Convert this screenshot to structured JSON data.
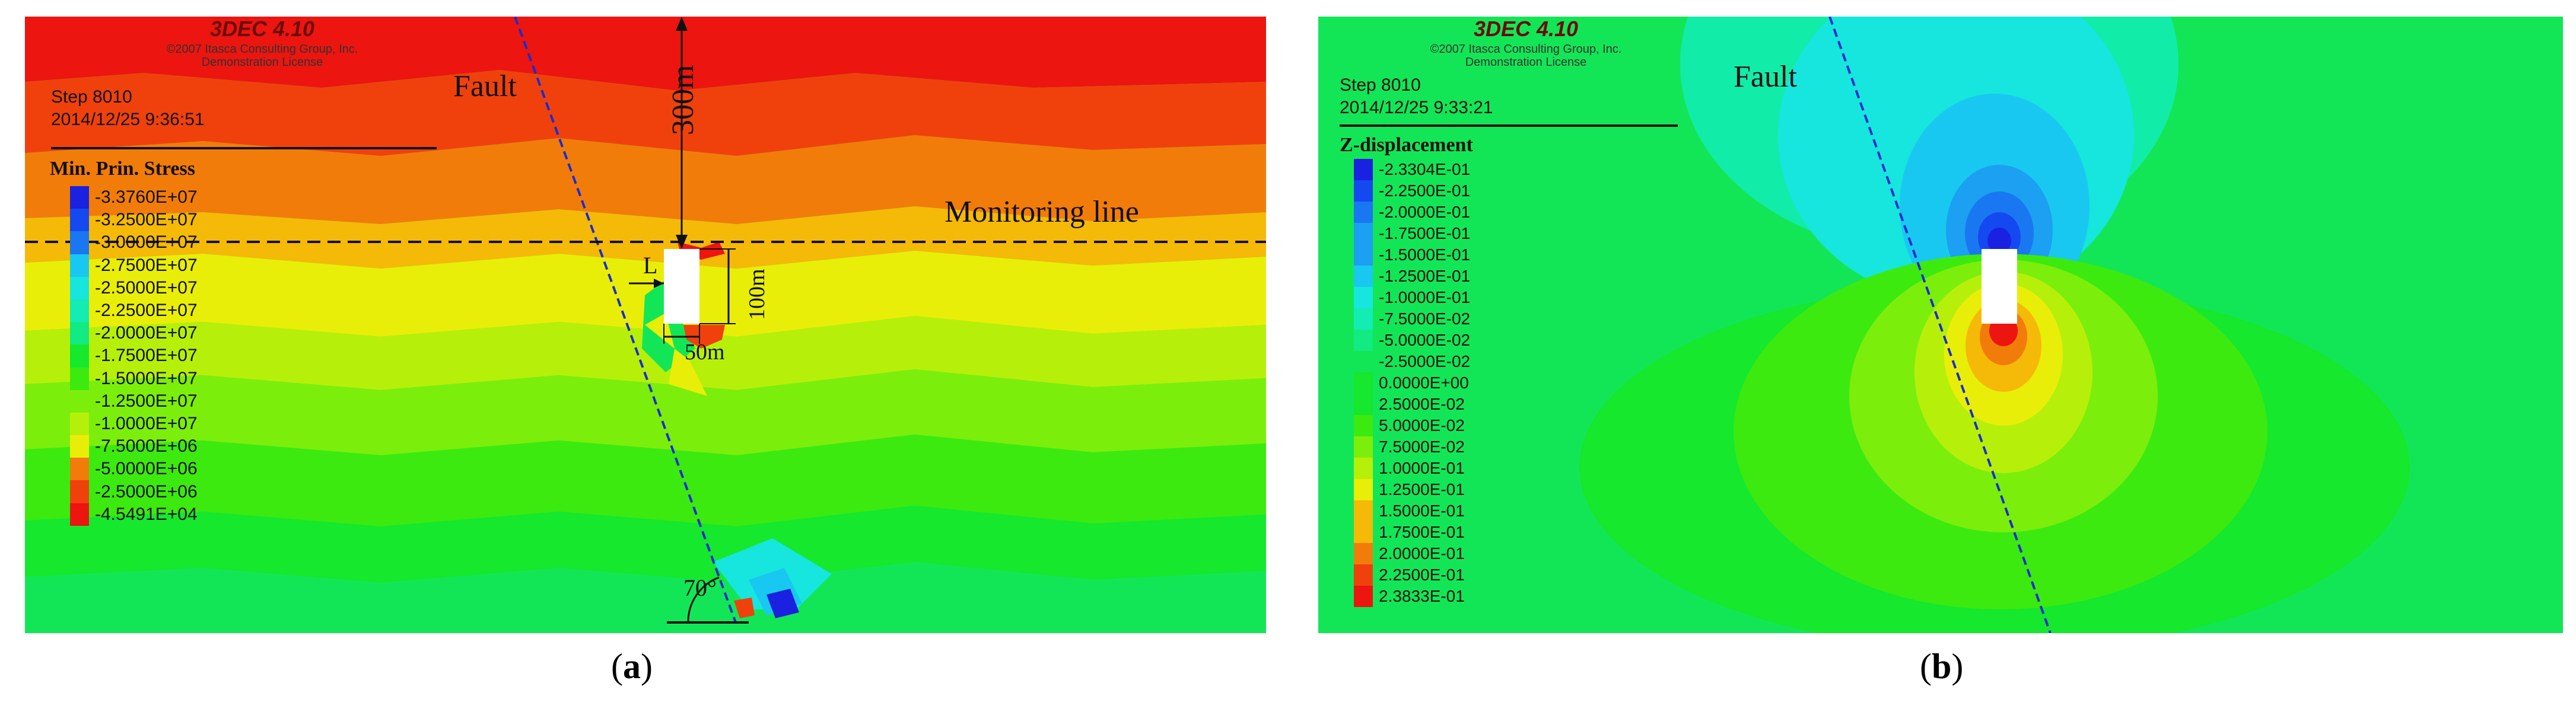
{
  "colors": {
    "scale": [
      "#1a21e0",
      "#1449f0",
      "#1a77f2",
      "#1ba0f2",
      "#19c8f0",
      "#16e6dd",
      "#13ecb2",
      "#12ea84",
      "#13e656",
      "#15e82d",
      "#3cea10",
      "#7cee0c",
      "#b6f00a",
      "#e9ee08",
      "#f5b908",
      "#f27c0a",
      "#f0410d",
      "#ec150f"
    ],
    "cavity": "#ffffff",
    "fault_line": "#1a2dd0"
  },
  "panel_a": {
    "software": "3DEC 4.10",
    "copyright": [
      "©2007 Itasca Consulting Group, Inc.",
      "Demonstration License"
    ],
    "step": "Step 8010",
    "timestamp": "2014/12/25 9:36:51",
    "legend_title": "Min. Prin. Stress",
    "legend": [
      "-3.3760E+07",
      "-3.2500E+07",
      "-3.0000E+07",
      "-2.7500E+07",
      "-2.5000E+07",
      "-2.2500E+07",
      "-2.0000E+07",
      "-1.7500E+07",
      "-1.5000E+07",
      "-1.2500E+07",
      "-1.0000E+07",
      "-7.5000E+06",
      "-5.0000E+06",
      "-2.5000E+06",
      "-4.5491E+04"
    ],
    "labels": {
      "fault": "Fault",
      "monitoring_line": "Monitoring line",
      "depth": "300m",
      "height": "100m",
      "width": "50m",
      "offset": "L",
      "angle": "70°"
    }
  },
  "panel_b": {
    "software": "3DEC 4.10",
    "copyright": [
      "©2007 Itasca Consulting Group, Inc.",
      "Demonstration License"
    ],
    "step": "Step 8010",
    "timestamp": "2014/12/25 9:33:21",
    "legend_title": "Z-displacement",
    "legend": [
      "-2.3304E-01",
      "-2.2500E-01",
      "-2.0000E-01",
      "-1.7500E-01",
      "-1.5000E-01",
      "-1.2500E-01",
      "-1.0000E-01",
      "-7.5000E-02",
      "-5.0000E-02",
      "-2.5000E-02",
      "0.0000E+00",
      "2.5000E-02",
      "5.0000E-02",
      "7.5000E-02",
      "1.0000E-01",
      "1.2500E-01",
      "1.5000E-01",
      "1.7500E-01",
      "2.0000E-01",
      "2.2500E-01",
      "2.3833E-01"
    ],
    "labels": {
      "fault": "Fault"
    }
  },
  "captions": {
    "a": "a",
    "b": "b"
  }
}
